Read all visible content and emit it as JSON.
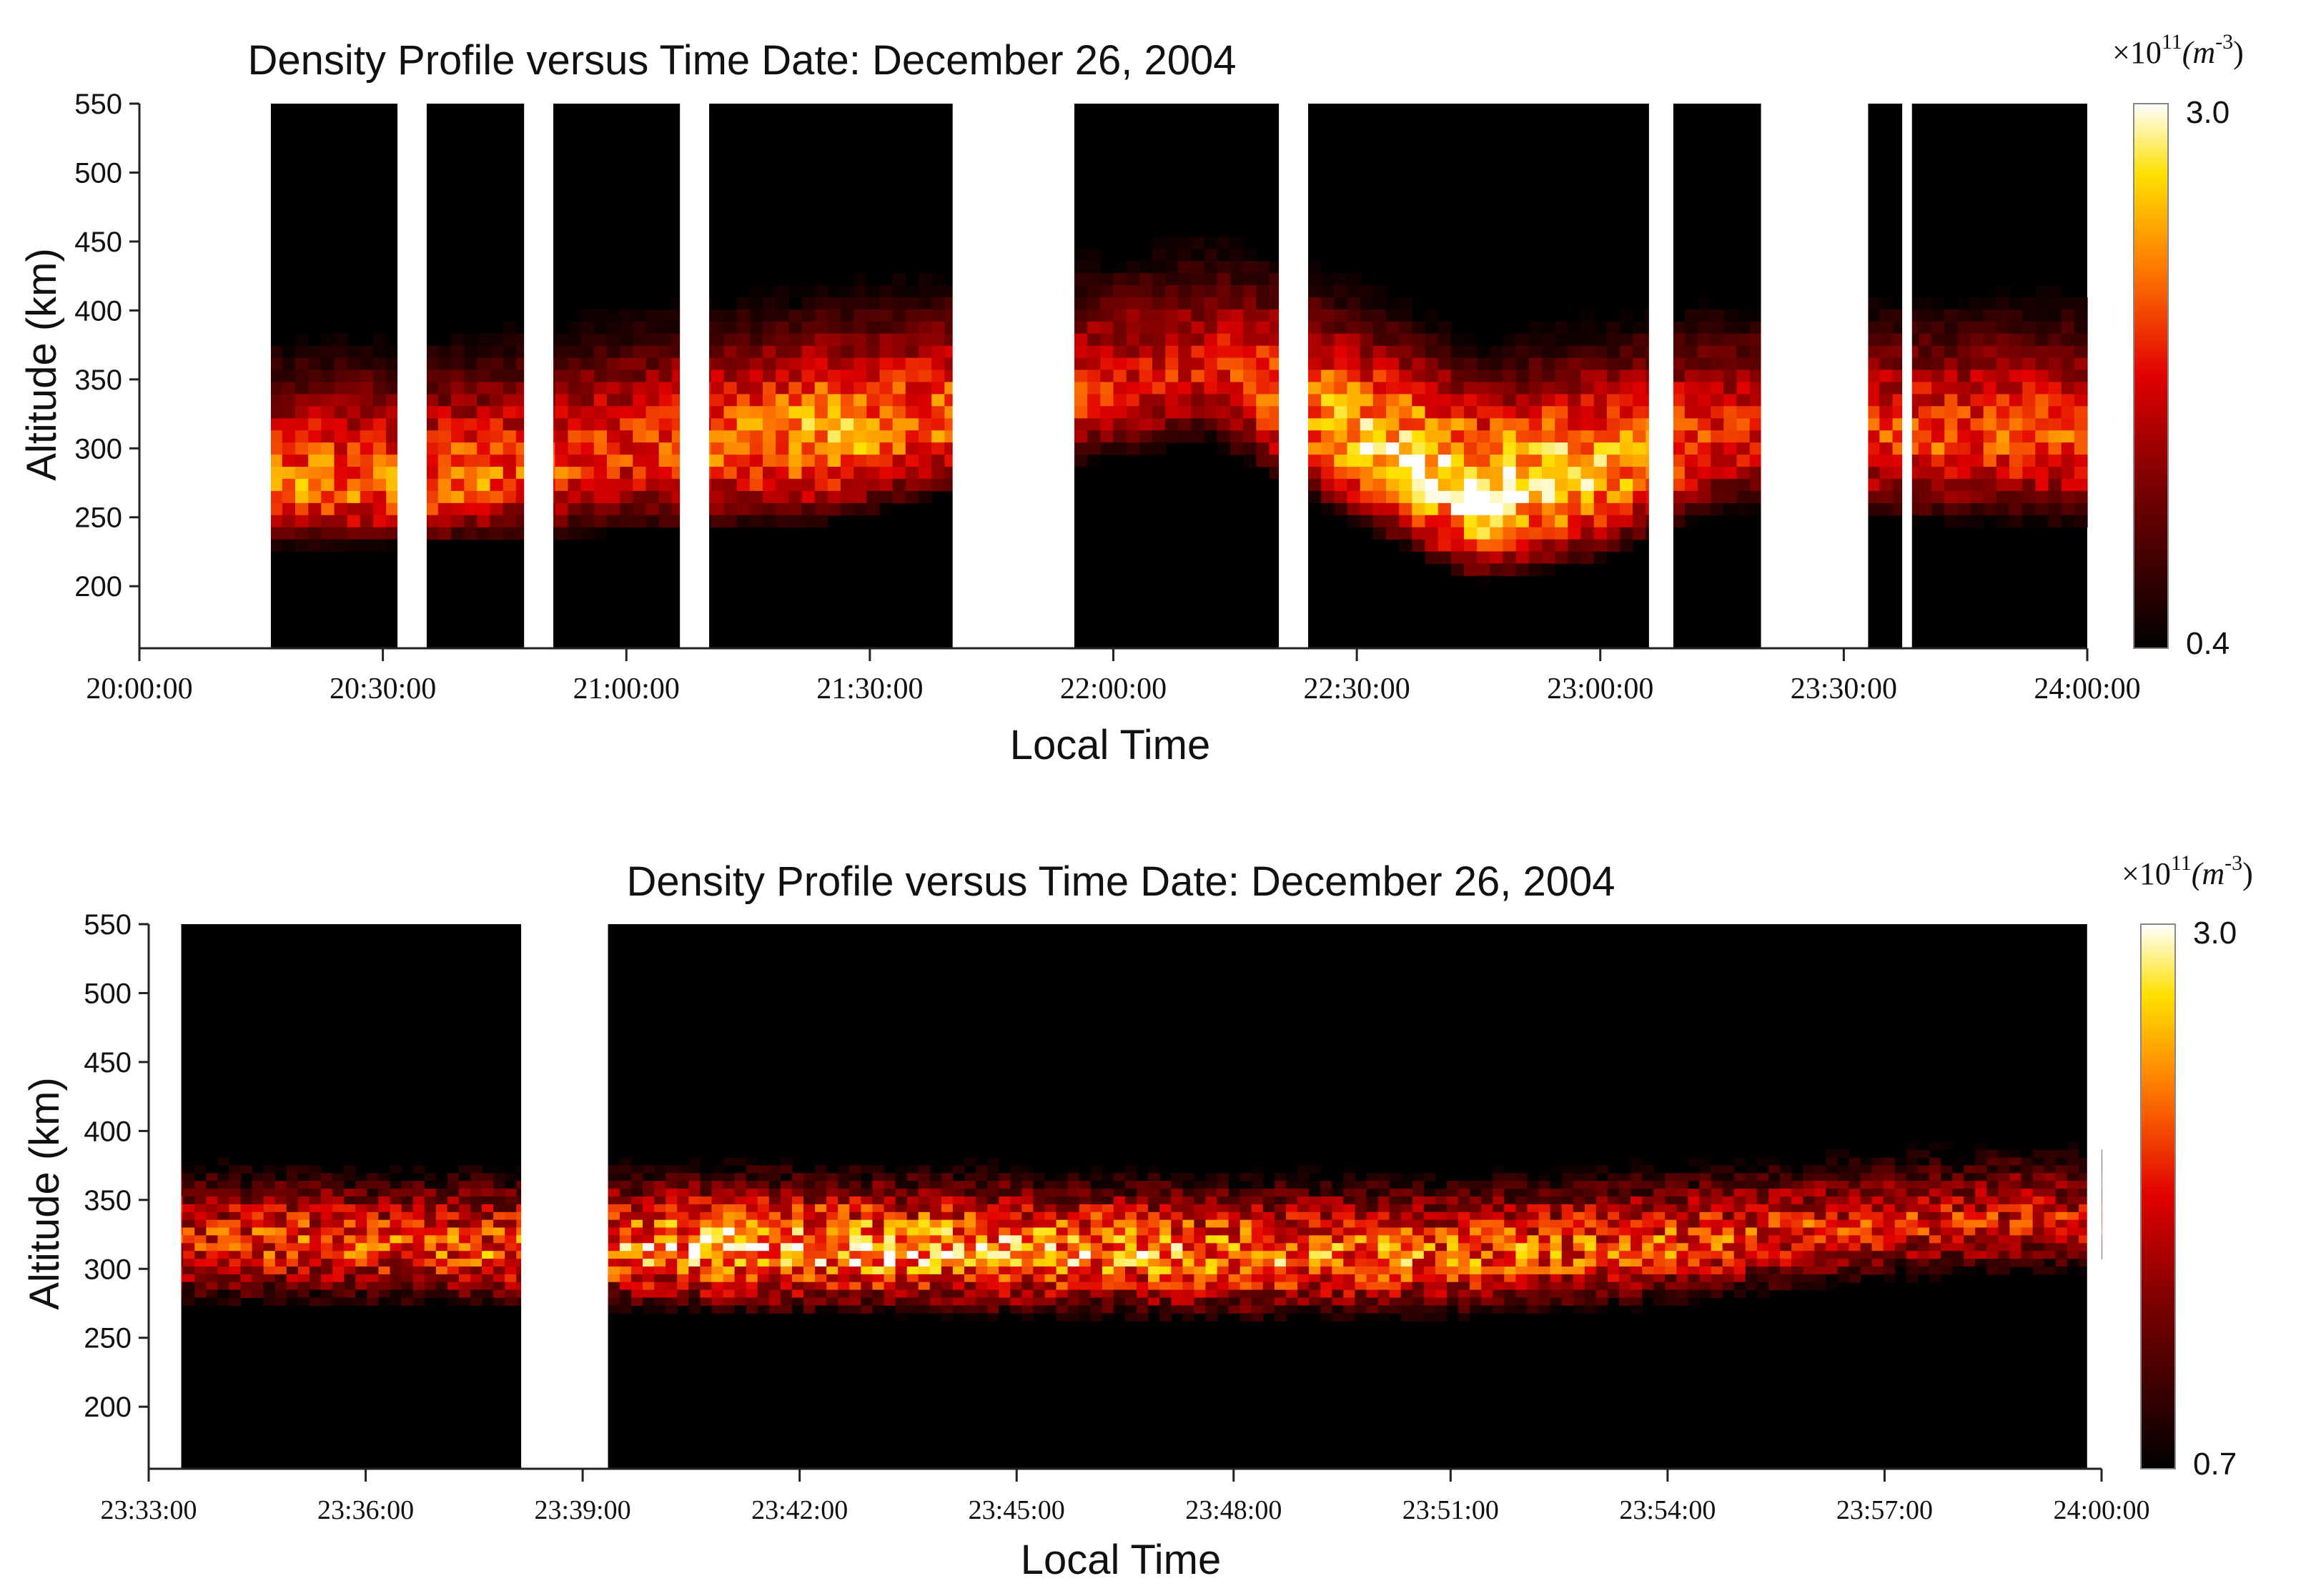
{
  "chart_data": [
    {
      "type": "heatmap",
      "title": "Density Profile versus Time   Date: December 26, 2004",
      "xlabel": "Local Time",
      "ylabel": "Altitude (km)",
      "yticks": [
        "200",
        "250",
        "300",
        "350",
        "400",
        "450",
        "500",
        "550"
      ],
      "xticks": [
        "20:00:00",
        "20:30:00",
        "21:00:00",
        "21:30:00",
        "22:00:00",
        "22:30:00",
        "23:00:00",
        "23:30:00",
        "24:00:00"
      ],
      "x_range_hours": [
        20.0,
        24.0
      ],
      "ylim": [
        155,
        550
      ],
      "colorbar": {
        "unit": "×10",
        "exponent": "11",
        "unit_text": "(m",
        "unit_exp": "-3",
        "unit_close": ")",
        "max_label": "3.0",
        "min_label": "0.4",
        "max": 3.0,
        "min": 0.4
      },
      "data_gaps_hours": [
        [
          20.0,
          20.27
        ],
        [
          20.53,
          20.59
        ],
        [
          20.79,
          20.85
        ],
        [
          21.11,
          21.17
        ],
        [
          21.67,
          21.92
        ],
        [
          22.34,
          22.4
        ],
        [
          23.1,
          23.15
        ],
        [
          23.33,
          23.55
        ],
        [
          23.62,
          23.64
        ]
      ],
      "layer_profile": [
        {
          "t": 20.3,
          "peak_km": 265,
          "bottom_km": 225,
          "max_density": 2.2
        },
        {
          "t": 20.7,
          "peak_km": 270,
          "bottom_km": 228,
          "max_density": 2.1
        },
        {
          "t": 21.0,
          "peak_km": 290,
          "bottom_km": 235,
          "max_density": 1.9
        },
        {
          "t": 21.4,
          "peak_km": 300,
          "bottom_km": 240,
          "max_density": 2.4
        },
        {
          "t": 21.95,
          "peak_km": 330,
          "bottom_km": 285,
          "max_density": 1.8
        },
        {
          "t": 22.2,
          "peak_km": 350,
          "bottom_km": 300,
          "max_density": 1.7
        },
        {
          "t": 22.5,
          "peak_km": 300,
          "bottom_km": 240,
          "max_density": 2.6
        },
        {
          "t": 22.75,
          "peak_km": 255,
          "bottom_km": 200,
          "max_density": 3.0
        },
        {
          "t": 23.0,
          "peak_km": 275,
          "bottom_km": 215,
          "max_density": 2.5
        },
        {
          "t": 23.25,
          "peak_km": 300,
          "bottom_km": 250,
          "max_density": 1.8
        },
        {
          "t": 23.8,
          "peak_km": 300,
          "bottom_km": 240,
          "max_density": 2.0
        }
      ]
    },
    {
      "type": "heatmap",
      "title": "Density Profile versus Time   Date: December 26, 2004",
      "xlabel": "Local Time",
      "ylabel": "Altitude (km)",
      "yticks": [
        "200",
        "250",
        "300",
        "350",
        "400",
        "450",
        "500",
        "550"
      ],
      "xticks": [
        "23:33:00",
        "23:36:00",
        "23:39:00",
        "23:42:00",
        "23:45:00",
        "23:48:00",
        "23:51:00",
        "23:54:00",
        "23:57:00",
        "24:00:00"
      ],
      "x_range_minutes": [
        33,
        60
      ],
      "ylim": [
        155,
        550
      ],
      "colorbar": {
        "unit": "×10",
        "exponent": "11",
        "unit_text": "(m",
        "unit_exp": "-3",
        "unit_close": ")",
        "max_label": "3.0",
        "min_label": "0.7",
        "max": 3.0,
        "min": 0.7
      },
      "data_gaps_minutes": [
        [
          33.0,
          33.45
        ],
        [
          38.15,
          39.35
        ],
        [
          59.8,
          60.0
        ]
      ],
      "layer_profile": [
        {
          "t": 34.0,
          "peak_km": 315,
          "bottom_km": 265,
          "max_density": 2.0
        },
        {
          "t": 38.0,
          "peak_km": 310,
          "bottom_km": 265,
          "max_density": 2.1
        },
        {
          "t": 41.0,
          "peak_km": 310,
          "bottom_km": 262,
          "max_density": 2.6
        },
        {
          "t": 45.0,
          "peak_km": 308,
          "bottom_km": 258,
          "max_density": 2.4
        },
        {
          "t": 48.0,
          "peak_km": 305,
          "bottom_km": 255,
          "max_density": 2.3
        },
        {
          "t": 51.0,
          "peak_km": 305,
          "bottom_km": 258,
          "max_density": 2.2
        },
        {
          "t": 54.0,
          "peak_km": 312,
          "bottom_km": 265,
          "max_density": 2.1
        },
        {
          "t": 57.0,
          "peak_km": 325,
          "bottom_km": 285,
          "max_density": 1.9
        },
        {
          "t": 59.5,
          "peak_km": 330,
          "bottom_km": 290,
          "max_density": 1.8
        }
      ]
    }
  ]
}
